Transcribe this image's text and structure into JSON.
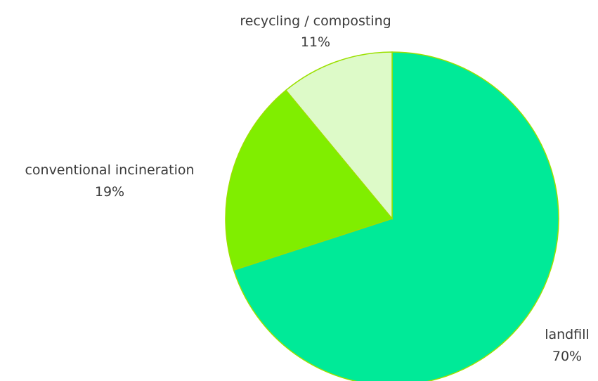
{
  "chart_data": {
    "type": "pie",
    "start_angle_deg": -90,
    "direction": "clockwise",
    "slices": [
      {
        "label": "landfill",
        "value": 70,
        "value_label": "70%",
        "color": "#00ea98"
      },
      {
        "label": "conventional incineration",
        "value": 19,
        "value_label": "19%",
        "color": "#80ee00"
      },
      {
        "label": "recycling / composting",
        "value": 11,
        "value_label": "11%",
        "color": "#ddfac8"
      }
    ]
  }
}
